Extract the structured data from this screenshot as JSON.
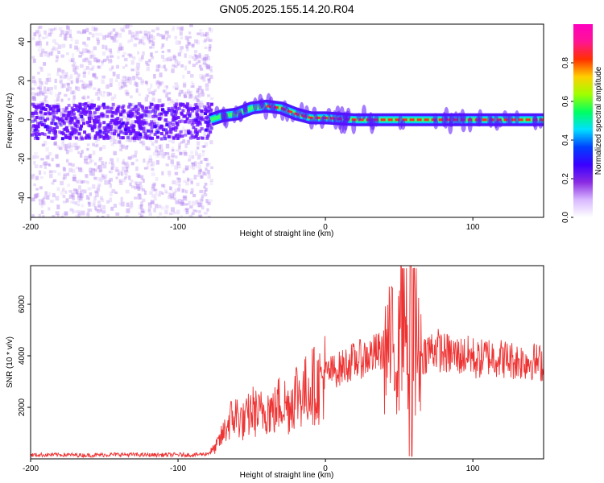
{
  "figure": {
    "title": "GN05.2025.155.14.20.R04"
  },
  "chart_data": [
    {
      "type": "heatmap",
      "panel": "spectrogram",
      "xlabel": "Height of straight line (km)",
      "ylabel": "Frequency (Hz)",
      "xlim": [
        -200,
        148
      ],
      "ylim": [
        -50,
        49
      ],
      "x_ticks": [
        -200,
        -100,
        0,
        100
      ],
      "x_tick_labels": [
        "-200",
        "-100",
        "0",
        "100"
      ],
      "y_ticks": [
        -40,
        -20,
        0,
        20,
        40
      ],
      "y_tick_labels": [
        "-40",
        "-20",
        "0",
        "20",
        "40"
      ],
      "colorbar": {
        "label": "Normalized spectral amplitude",
        "range": [
          0,
          1
        ],
        "ticks": [
          0.0,
          0.2,
          0.4,
          0.6,
          0.8
        ],
        "tick_labels": [
          "0.0",
          "0.2",
          "0.4",
          "0.6",
          "0.8"
        ],
        "colormap": [
          "#ffffff",
          "#d8b8ff",
          "#8a2be2",
          "#3a00ff",
          "#0040ff",
          "#00e0ff",
          "#00ff60",
          "#a0ff00",
          "#ffd000",
          "#ff3000",
          "#ff1493",
          "#ff00c0"
        ]
      },
      "ridge": {
        "x": [
          -78,
          -70,
          -60,
          -50,
          -40,
          -30,
          -20,
          -10,
          0,
          10,
          20,
          40,
          60,
          80,
          100,
          120,
          148
        ],
        "frequency": [
          0,
          2,
          3,
          6,
          7,
          6,
          3,
          1,
          1,
          0.5,
          0,
          0,
          0,
          0,
          0,
          0,
          0
        ]
      },
      "noise_region_x": [
        -200,
        -78
      ]
    },
    {
      "type": "line",
      "panel": "snr",
      "xlabel": "Height of straight line (km)",
      "ylabel": "SNR (10 * v/v)",
      "xlim": [
        -200,
        148
      ],
      "ylim": [
        0,
        7500
      ],
      "x_ticks": [
        -200,
        -100,
        0,
        100
      ],
      "x_tick_labels": [
        "-200",
        "-100",
        "0",
        "100"
      ],
      "y_ticks": [
        2000,
        4000,
        6000
      ],
      "y_tick_labels": [
        "2000",
        "4000",
        "6000"
      ],
      "color": "#ee3333",
      "series": [
        {
          "x": [
            -200,
            -180,
            -160,
            -140,
            -120,
            -100,
            -90,
            -80,
            -75,
            -70,
            -65,
            -60,
            -55,
            -50,
            -45,
            -40,
            -35,
            -30,
            -25,
            -20,
            -15,
            -10,
            -5,
            0,
            5,
            10,
            15,
            20,
            25,
            30,
            35,
            40,
            45,
            50,
            52,
            55,
            58,
            60,
            65,
            70,
            75,
            80,
            90,
            100,
            102,
            110,
            120,
            130,
            140,
            148
          ],
          "values": [
            150,
            160,
            140,
            170,
            150,
            160,
            150,
            200,
            400,
            900,
            1500,
            1700,
            1400,
            1900,
            1700,
            2000,
            1800,
            2300,
            2000,
            2600,
            2500,
            2900,
            2800,
            3300,
            3400,
            3500,
            3700,
            3800,
            3900,
            4000,
            4100,
            4200,
            4300,
            4100,
            5500,
            3200,
            6500,
            4200,
            4000,
            4200,
            4300,
            4100,
            4000,
            4000,
            3800,
            4000,
            3900,
            3800,
            3800,
            3700
          ]
        }
      ]
    }
  ]
}
